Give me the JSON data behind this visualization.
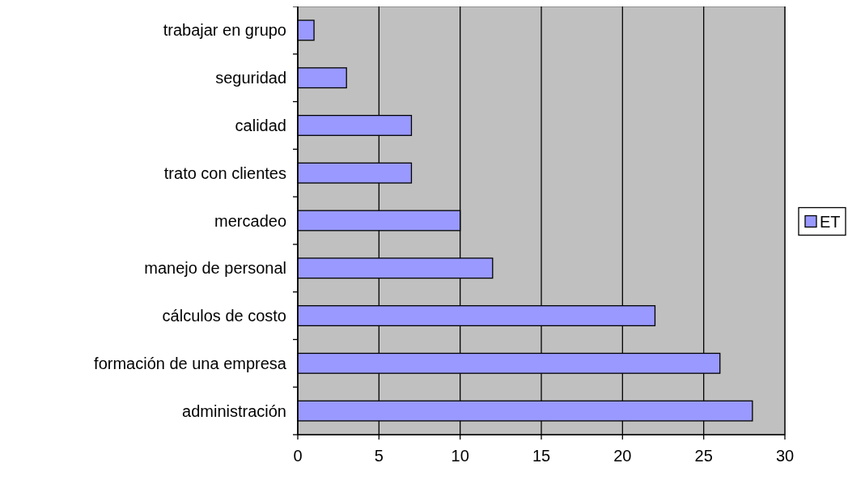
{
  "chart_data": {
    "type": "bar",
    "orientation": "horizontal",
    "categories": [
      "trabajar en grupo",
      "seguridad",
      "calidad",
      "trato con clientes",
      "mercadeo",
      "manejo de personal",
      "cálculos de costo",
      "formación de una empresa",
      "administración"
    ],
    "series": [
      {
        "name": "ET",
        "color": "#9999ff",
        "values": [
          1,
          3,
          7,
          7,
          10,
          12,
          22,
          26,
          28
        ]
      }
    ],
    "xlim": [
      0,
      30
    ],
    "xticks": [
      0,
      5,
      10,
      15,
      20,
      25,
      30
    ],
    "grid": "x",
    "legend": "right"
  }
}
